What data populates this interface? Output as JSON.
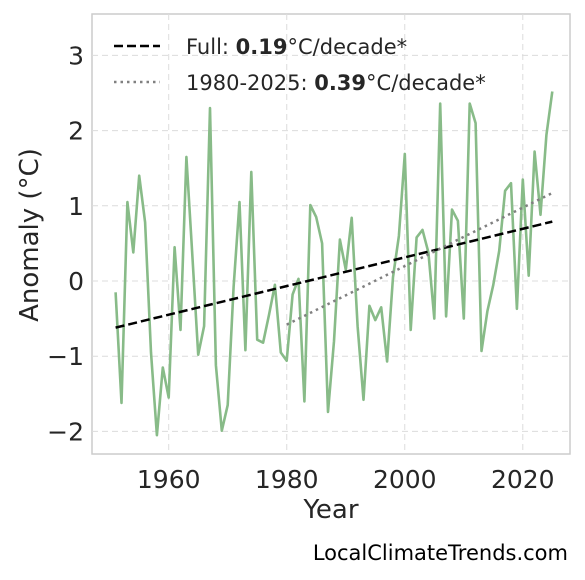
{
  "chart_data": {
    "type": "line",
    "title": "",
    "xlabel": "Year",
    "ylabel": "Anomaly (°C)",
    "xlim": [
      1947,
      2028
    ],
    "ylim": [
      -2.3,
      3.55
    ],
    "x_ticks": [
      1960,
      1980,
      2000,
      2020
    ],
    "x_tick_labels": [
      "1960",
      "1980",
      "2000",
      "2020"
    ],
    "y_ticks": [
      -2,
      -1,
      0,
      1,
      2,
      3
    ],
    "y_tick_labels": [
      "−2",
      "−1",
      "0",
      "1",
      "2",
      "3"
    ],
    "grid": true,
    "legend_position": "top-left",
    "series": [
      {
        "style": "solid",
        "color": "#88bb88",
        "x": [
          1951,
          1952,
          1953,
          1954,
          1955,
          1956,
          1957,
          1958,
          1959,
          1960,
          1961,
          1962,
          1963,
          1964,
          1965,
          1966,
          1967,
          1968,
          1969,
          1970,
          1971,
          1972,
          1973,
          1974,
          1975,
          1976,
          1977,
          1978,
          1979,
          1980,
          1981,
          1982,
          1983,
          1984,
          1985,
          1986,
          1987,
          1988,
          1989,
          1990,
          1991,
          1992,
          1993,
          1994,
          1995,
          1996,
          1997,
          1998,
          1999,
          2000,
          2001,
          2002,
          2003,
          2004,
          2005,
          2006,
          2007,
          2008,
          2009,
          2010,
          2011,
          2012,
          2013,
          2014,
          2015,
          2016,
          2017,
          2018,
          2019,
          2020,
          2021,
          2022,
          2023,
          2024,
          2025
        ],
        "y": [
          -0.15,
          -1.62,
          1.05,
          0.38,
          1.4,
          0.78,
          -0.95,
          -2.05,
          -1.15,
          -1.55,
          0.45,
          -0.65,
          1.65,
          0.35,
          -0.98,
          -0.6,
          2.3,
          -1.12,
          -1.99,
          -1.65,
          -0.08,
          1.05,
          -0.92,
          1.45,
          -0.78,
          -0.82,
          -0.45,
          -0.05,
          -0.95,
          -1.06,
          -0.18,
          0.03,
          -1.6,
          1.01,
          0.85,
          0.5,
          -1.74,
          -0.8,
          0.55,
          0.15,
          0.84,
          -0.6,
          -1.58,
          -0.33,
          -0.52,
          -0.35,
          -1.07,
          0.05,
          0.6,
          1.69,
          -0.65,
          0.58,
          0.68,
          0.38,
          -0.5,
          2.36,
          -0.47,
          0.95,
          0.8,
          -0.5,
          2.36,
          2.1,
          -0.93,
          -0.4,
          -0.05,
          0.4,
          1.2,
          1.3,
          -0.37,
          1.35,
          0.07,
          1.72,
          0.88,
          1.94,
          2.52
        ]
      },
      {
        "name": "Full",
        "style": "dashed",
        "color": "#000000",
        "x": [
          1951,
          2025
        ],
        "y": [
          -0.62,
          0.79
        ]
      },
      {
        "name": "1980-2025",
        "style": "dotted",
        "color": "#808080",
        "x": [
          1980,
          2025
        ],
        "y": [
          -0.58,
          1.17
        ]
      }
    ],
    "legend": [
      {
        "prefix": "Full: ",
        "value": "0.19",
        "suffix": "°C/decade*",
        "style": "dashed",
        "color": "#000000"
      },
      {
        "prefix": "1980-2025: ",
        "value": "0.39",
        "suffix": "°C/decade*",
        "style": "dotted",
        "color": "#808080"
      }
    ]
  },
  "footer": {
    "credit": "LocalClimateTrends.com"
  }
}
